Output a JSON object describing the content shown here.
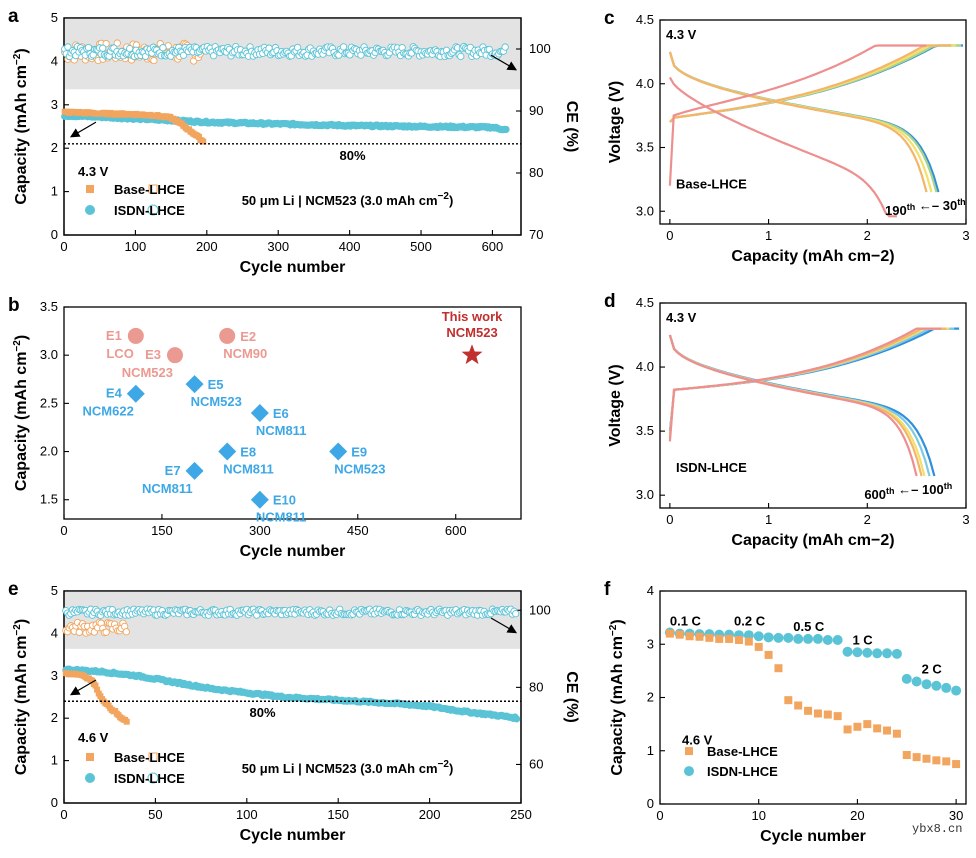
{
  "watermark": "ybx8.cn",
  "colors": {
    "orange": "#F2A55F",
    "cyan": "#5BC3D6",
    "salmon": "#EB9A92",
    "blue": "#3EA8E6",
    "darkred": "#C0302E",
    "band": "#E3E3E3"
  },
  "chart_data": [
    {
      "id": "a",
      "type": "scatter",
      "panel_label": "a",
      "xlabel": "Cycle number",
      "ylabel": "Capacity (mAh cm−2)",
      "y2label": "CE (%)",
      "xlim": [
        0,
        640
      ],
      "ylim": [
        0,
        5
      ],
      "y2lim": [
        70,
        105
      ],
      "xticks": [
        0,
        100,
        200,
        300,
        400,
        500,
        600
      ],
      "yticks": [
        0,
        1,
        2,
        3,
        4,
        5
      ],
      "y2ticks": [
        70,
        80,
        90,
        100
      ],
      "voltage_label": "4.3 V",
      "retention_label": "80%",
      "retention_value": 2.1,
      "cell_label": "50 μm Li | NCM523 (3.0 mAh cm−2)",
      "ce_band": [
        93.5,
        105
      ],
      "series": [
        {
          "name": "Base-LHCE",
          "color": "orange",
          "capacity": {
            "x": [
              1,
              25,
              50,
              75,
              100,
              125,
              150,
              165,
              175,
              185,
              195
            ],
            "y": [
              2.83,
              2.82,
              2.8,
              2.79,
              2.78,
              2.76,
              2.7,
              2.55,
              2.42,
              2.3,
              2.15
            ]
          },
          "ce_x": [
            1,
            195
          ],
          "ce_mean": 99.5
        },
        {
          "name": "ISDN-LHCE",
          "color": "cyan",
          "capacity": {
            "x": [
              1,
              50,
              100,
              150,
              200,
              250,
              300,
              350,
              400,
              450,
              500,
              550,
              600,
              620
            ],
            "y": [
              2.75,
              2.72,
              2.68,
              2.64,
              2.6,
              2.58,
              2.56,
              2.54,
              2.52,
              2.51,
              2.5,
              2.49,
              2.48,
              2.42
            ]
          },
          "ce_x": [
            1,
            620
          ],
          "ce_mean": 99.6
        }
      ]
    },
    {
      "id": "b",
      "type": "scatter",
      "panel_label": "b",
      "xlabel": "Cycle number",
      "ylabel": "Capacity (mAh cm−2)",
      "xlim": [
        0,
        700
      ],
      "ylim": [
        1.3,
        3.5
      ],
      "xticks": [
        0,
        150,
        300,
        450,
        600
      ],
      "yticks": [
        1.5,
        2.0,
        2.5,
        3.0,
        3.5
      ],
      "points": [
        {
          "label": "E1",
          "sub": "LCO",
          "x": 110,
          "y": 3.2,
          "marker": "circle",
          "color": "salmon"
        },
        {
          "label": "E2",
          "sub": "NCM90",
          "x": 250,
          "y": 3.2,
          "marker": "circle",
          "color": "salmon"
        },
        {
          "label": "E3",
          "sub": "NCM523",
          "x": 170,
          "y": 3.0,
          "marker": "circle",
          "color": "salmon"
        },
        {
          "label": "E4",
          "sub": "NCM622",
          "x": 110,
          "y": 2.6,
          "marker": "diamond",
          "color": "blue"
        },
        {
          "label": "E5",
          "sub": "NCM523",
          "x": 200,
          "y": 2.7,
          "marker": "diamond",
          "color": "blue"
        },
        {
          "label": "E6",
          "sub": "NCM811",
          "x": 300,
          "y": 2.4,
          "marker": "diamond",
          "color": "blue"
        },
        {
          "label": "E7",
          "sub": "NCM811",
          "x": 200,
          "y": 1.8,
          "marker": "diamond",
          "color": "blue"
        },
        {
          "label": "E8",
          "sub": "NCM811",
          "x": 250,
          "y": 2.0,
          "marker": "diamond",
          "color": "blue"
        },
        {
          "label": "E9",
          "sub": "NCM523",
          "x": 420,
          "y": 2.0,
          "marker": "diamond",
          "color": "blue"
        },
        {
          "label": "E10",
          "sub": "NCM811",
          "x": 300,
          "y": 1.5,
          "marker": "diamond",
          "color": "blue"
        },
        {
          "label": "This work",
          "sub": "NCM523",
          "x": 625,
          "y": 3.0,
          "marker": "star",
          "color": "darkred"
        }
      ]
    },
    {
      "id": "c",
      "type": "line",
      "panel_label": "c",
      "xlabel": "Capacity (mAh cm−2)",
      "ylabel": "Voltage (V)",
      "xlim": [
        -0.1,
        3
      ],
      "ylim": [
        2.9,
        4.5
      ],
      "xticks": [
        0,
        1,
        2,
        3
      ],
      "yticks": [
        3.0,
        3.5,
        4.0,
        4.5
      ],
      "voltage_label": "4.3 V",
      "electrolyte_label": "Base-LHCE",
      "cycle_start_label": "190th",
      "cycle_end_label": "30th",
      "series": [
        {
          "color": "#2F8FDB",
          "chg_cap": 2.72,
          "dis_cap": 2.72
        },
        {
          "color": "#A9D48A",
          "chg_cap": 2.7,
          "dis_cap": 2.7
        },
        {
          "color": "#F3E06A",
          "chg_cap": 2.65,
          "dis_cap": 2.65
        },
        {
          "color": "#F4B46A",
          "chg_cap": 2.6,
          "dis_cap": 2.6
        },
        {
          "color": "#ED8F8F",
          "chg_cap": 2.35,
          "dis_cap": 2.3
        }
      ]
    },
    {
      "id": "d",
      "type": "line",
      "panel_label": "d",
      "xlabel": "Capacity (mAh cm−2)",
      "ylabel": "Voltage (V)",
      "xlim": [
        -0.1,
        3
      ],
      "ylim": [
        2.9,
        4.5
      ],
      "xticks": [
        0,
        1,
        2,
        3
      ],
      "yticks": [
        3.0,
        3.5,
        4.0,
        4.5
      ],
      "voltage_label": "4.3 V",
      "electrolyte_label": "ISDN-LHCE",
      "cycle_start_label": "600th",
      "cycle_end_label": "100th",
      "series": [
        {
          "color": "#2F8FDB",
          "cap": 2.68
        },
        {
          "color": "#7FC9E8",
          "cap": 2.63
        },
        {
          "color": "#F3E06A",
          "cap": 2.58
        },
        {
          "color": "#F4B46A",
          "cap": 2.55
        },
        {
          "color": "#ED8F8F",
          "cap": 2.5
        }
      ]
    },
    {
      "id": "e",
      "type": "scatter",
      "panel_label": "e",
      "xlabel": "Cycle number",
      "ylabel": "Capacity (mAh cm−2)",
      "y2label": "CE (%)",
      "xlim": [
        0,
        250
      ],
      "ylim": [
        0,
        5
      ],
      "y2lim": [
        50,
        105
      ],
      "xticks": [
        0,
        50,
        100,
        150,
        200,
        250
      ],
      "yticks": [
        0,
        1,
        2,
        3,
        4,
        5
      ],
      "y2ticks": [
        60,
        80,
        100
      ],
      "voltage_label": "4.6 V",
      "retention_label": "80%",
      "retention_value": 2.4,
      "cell_label": "50 μm Li | NCM523 (3.0 mAh cm−2)",
      "ce_band": [
        90,
        105
      ],
      "series": [
        {
          "name": "Base-LHCE",
          "color": "orange",
          "capacity": {
            "x": [
              1,
              5,
              10,
              15,
              18,
              20,
              22,
              25,
              28,
              30,
              33,
              35
            ],
            "y": [
              3.05,
              3.05,
              3.02,
              2.9,
              2.7,
              2.5,
              2.4,
              2.25,
              2.15,
              2.05,
              1.95,
              1.9
            ]
          },
          "ce_x": [
            1,
            35
          ],
          "ce_mean": 95.5
        },
        {
          "name": "ISDN-LHCE",
          "color": "cyan",
          "capacity": {
            "x": [
              1,
              20,
              40,
              60,
              80,
              100,
              120,
              140,
              160,
              180,
              200,
              220,
              240,
              248
            ],
            "y": [
              3.15,
              3.1,
              3.0,
              2.85,
              2.7,
              2.6,
              2.5,
              2.45,
              2.4,
              2.35,
              2.28,
              2.15,
              2.05,
              2.0
            ]
          },
          "ce_x": [
            1,
            248
          ],
          "ce_mean": 99.5
        }
      ]
    },
    {
      "id": "f",
      "type": "scatter",
      "panel_label": "f",
      "xlabel": "Cycle number",
      "ylabel": "Capacity (mAh cm−2)",
      "xlim": [
        0,
        31
      ],
      "ylim": [
        0,
        4
      ],
      "xticks": [
        0,
        10,
        20,
        30
      ],
      "yticks": [
        0,
        1,
        2,
        3,
        4
      ],
      "voltage_label": "4.6 V",
      "rate_labels": [
        {
          "text": "0.1 C",
          "x": 1,
          "y": 3.35
        },
        {
          "text": "0.2 C",
          "x": 7.5,
          "y": 3.35
        },
        {
          "text": "0.5 C",
          "x": 13.5,
          "y": 3.25
        },
        {
          "text": "1 C",
          "x": 19.5,
          "y": 3.0
        },
        {
          "text": "2 C",
          "x": 26.5,
          "y": 2.45
        }
      ],
      "series": [
        {
          "name": "Base-LHCE",
          "color": "orange",
          "marker": "square",
          "x": [
            1,
            2,
            3,
            4,
            5,
            6,
            7,
            8,
            9,
            10,
            11,
            12,
            13,
            14,
            15,
            16,
            17,
            18,
            19,
            20,
            21,
            22,
            23,
            24,
            25,
            26,
            27,
            28,
            29,
            30
          ],
          "y": [
            3.2,
            3.18,
            3.15,
            3.14,
            3.12,
            3.1,
            3.1,
            3.08,
            3.05,
            2.95,
            2.8,
            2.55,
            1.95,
            1.85,
            1.75,
            1.7,
            1.68,
            1.65,
            1.4,
            1.45,
            1.5,
            1.42,
            1.38,
            1.32,
            0.92,
            0.88,
            0.85,
            0.82,
            0.8,
            0.75
          ]
        },
        {
          "name": "ISDN-LHCE",
          "color": "cyan",
          "marker": "circle",
          "x": [
            1,
            2,
            3,
            4,
            5,
            6,
            7,
            8,
            9,
            10,
            11,
            12,
            13,
            14,
            15,
            16,
            17,
            18,
            19,
            20,
            21,
            22,
            23,
            24,
            25,
            26,
            27,
            28,
            29,
            30
          ],
          "y": [
            3.22,
            3.2,
            3.2,
            3.19,
            3.19,
            3.18,
            3.18,
            3.17,
            3.17,
            3.15,
            3.13,
            3.12,
            3.12,
            3.1,
            3.1,
            3.1,
            3.08,
            3.08,
            2.86,
            2.85,
            2.84,
            2.83,
            2.83,
            2.82,
            2.35,
            2.3,
            2.25,
            2.22,
            2.18,
            2.13
          ]
        }
      ]
    }
  ]
}
